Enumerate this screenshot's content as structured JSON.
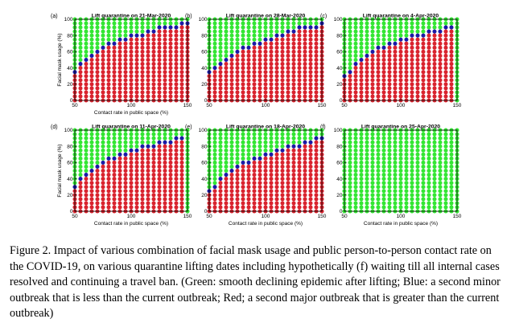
{
  "caption": "Figure 2. Impact of various combination of facial mask usage and public person-to-person contact rate on the COVID-19, on various quarantine lifting dates including hypothetically (f) waiting till all internal cases resolved and continuing a travel ban. (Green: smooth declining epidemic after lifting; Blue: a second minor outbreak that is less than the current outbreak; Red; a second major outbreak that is greater than the current outbreak)",
  "colors": {
    "green": "#33e633",
    "blue": "#1a1aa6",
    "red": "#d9232e"
  },
  "chart_data": [
    {
      "type": "scatter",
      "panel_label": "(a)",
      "title": "Lift quarantine on 21-Mar-2020",
      "xlabel": "Contact rate in public space (%)",
      "ylabel": "Facial mask usage (%)",
      "xlim": [
        50,
        150
      ],
      "ylim": [
        0,
        100
      ],
      "xticks": [
        50,
        100,
        150
      ],
      "yticks": [
        0,
        20,
        40,
        60,
        80,
        100
      ],
      "x": [
        50,
        55,
        60,
        65,
        70,
        75,
        80,
        85,
        90,
        95,
        100,
        105,
        110,
        115,
        120,
        125,
        130,
        135,
        140,
        145,
        150
      ],
      "blue_boundary_y": [
        35,
        45,
        50,
        55,
        60,
        65,
        70,
        70,
        75,
        75,
        80,
        80,
        80,
        85,
        85,
        90,
        90,
        90,
        90,
        95,
        95
      ]
    },
    {
      "type": "scatter",
      "panel_label": "(b)",
      "title": "Lift quarantine on 28-Mar-2020",
      "xlabel": "",
      "ylabel": "",
      "xlim": [
        50,
        150
      ],
      "ylim": [
        0,
        100
      ],
      "xticks": [
        50,
        100,
        150
      ],
      "yticks": [
        0,
        20,
        40,
        60,
        80,
        100
      ],
      "x": [
        50,
        55,
        60,
        65,
        70,
        75,
        80,
        85,
        90,
        95,
        100,
        105,
        110,
        115,
        120,
        125,
        130,
        135,
        140,
        145,
        150
      ],
      "blue_boundary_y": [
        35,
        40,
        45,
        50,
        55,
        60,
        65,
        65,
        70,
        70,
        75,
        75,
        80,
        80,
        85,
        85,
        90,
        90,
        90,
        90,
        95
      ]
    },
    {
      "type": "scatter",
      "panel_label": "(c)",
      "title": "Lift quarantine on 4-Apr-2020",
      "xlabel": "",
      "ylabel": "",
      "xlim": [
        50,
        150
      ],
      "ylim": [
        0,
        100
      ],
      "xticks": [
        50,
        100,
        150
      ],
      "yticks": [
        0,
        20,
        40,
        60,
        80,
        100
      ],
      "x": [
        50,
        55,
        60,
        65,
        70,
        75,
        80,
        85,
        90,
        95,
        100,
        105,
        110,
        115,
        120,
        125,
        130,
        135,
        140,
        145,
        150
      ],
      "blue_boundary_y": [
        30,
        35,
        45,
        50,
        55,
        60,
        65,
        65,
        70,
        70,
        75,
        75,
        80,
        80,
        80,
        85,
        85,
        85,
        90,
        90,
        null
      ]
    },
    {
      "type": "scatter",
      "panel_label": "(d)",
      "title": "Lift quarantine on 11-Apr-2020",
      "xlabel": "Contact rate in public space (%)",
      "ylabel": "Facial mask usage (%)",
      "xlim": [
        50,
        150
      ],
      "ylim": [
        0,
        100
      ],
      "xticks": [
        50,
        100,
        150
      ],
      "yticks": [
        0,
        20,
        40,
        60,
        80,
        100
      ],
      "x": [
        50,
        55,
        60,
        65,
        70,
        75,
        80,
        85,
        90,
        95,
        100,
        105,
        110,
        115,
        120,
        125,
        130,
        135,
        140,
        145,
        150
      ],
      "blue_boundary_y": [
        30,
        40,
        45,
        50,
        55,
        60,
        65,
        65,
        70,
        70,
        75,
        75,
        80,
        80,
        80,
        85,
        85,
        85,
        90,
        90,
        null
      ]
    },
    {
      "type": "scatter",
      "panel_label": "(e)",
      "title": "Lift quarantine on 18-Apr-2020",
      "xlabel": "Contact rate in public space (%)",
      "ylabel": "",
      "xlim": [
        50,
        150
      ],
      "ylim": [
        0,
        100
      ],
      "xticks": [
        50,
        100,
        150
      ],
      "yticks": [
        0,
        20,
        40,
        60,
        80,
        100
      ],
      "x": [
        50,
        55,
        60,
        65,
        70,
        75,
        80,
        85,
        90,
        95,
        100,
        105,
        110,
        115,
        120,
        125,
        130,
        135,
        140,
        145,
        150
      ],
      "blue_boundary_y": [
        25,
        30,
        40,
        45,
        50,
        55,
        60,
        60,
        65,
        65,
        70,
        70,
        75,
        75,
        80,
        80,
        80,
        85,
        85,
        90,
        90
      ]
    },
    {
      "type": "scatter",
      "panel_label": "(f)",
      "title": "Lift quarantine on 25-Apr-2020",
      "xlabel": "Contact rate in public space (%)",
      "ylabel": "",
      "xlim": [
        50,
        150
      ],
      "ylim": [
        0,
        100
      ],
      "xticks": [
        50,
        100,
        150
      ],
      "yticks": [
        0,
        20,
        40,
        60,
        80,
        100
      ],
      "x": [
        50,
        55,
        60,
        65,
        70,
        75,
        80,
        85,
        90,
        95,
        100,
        105,
        110,
        115,
        120,
        125,
        130,
        135,
        140,
        145,
        150
      ],
      "all_green": true
    }
  ]
}
